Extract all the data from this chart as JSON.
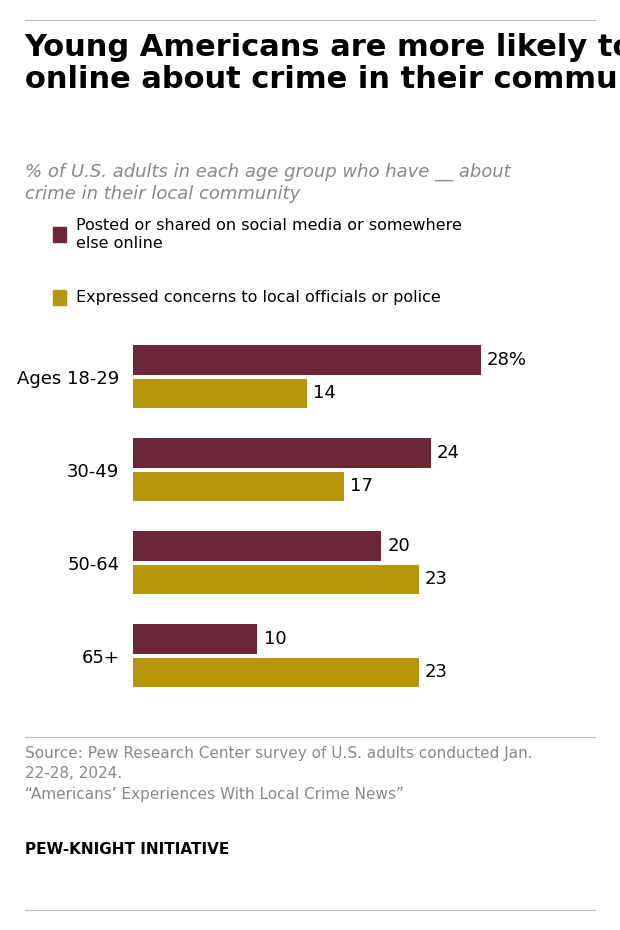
{
  "title": "Young Americans are more likely to post\nonline about crime in their community",
  "subtitle": "% of U.S. adults in each age group who have __ about\ncrime in their local community",
  "legend_labels": [
    "Posted or shared on social media or somewhere\nelse online",
    "Expressed concerns to local officials or police"
  ],
  "age_groups": [
    "Ages 18-29",
    "30-49",
    "50-64",
    "65+"
  ],
  "posted_values": [
    28,
    24,
    20,
    10
  ],
  "expressed_values": [
    14,
    17,
    23,
    23
  ],
  "posted_color": "#6B2737",
  "expressed_color": "#B8960C",
  "bar_height": 0.32,
  "xlim": [
    0,
    32
  ],
  "source_text": "Source: Pew Research Center survey of U.S. adults conducted Jan.\n22-28, 2024.\n“Americans’ Experiences With Local Crime News”",
  "brand_text": "PEW-KNIGHT INITIATIVE",
  "bg_color": "#FFFFFF",
  "title_fontsize": 22,
  "subtitle_fontsize": 13,
  "label_fontsize": 13,
  "value_fontsize": 13,
  "source_fontsize": 11,
  "brand_fontsize": 11
}
